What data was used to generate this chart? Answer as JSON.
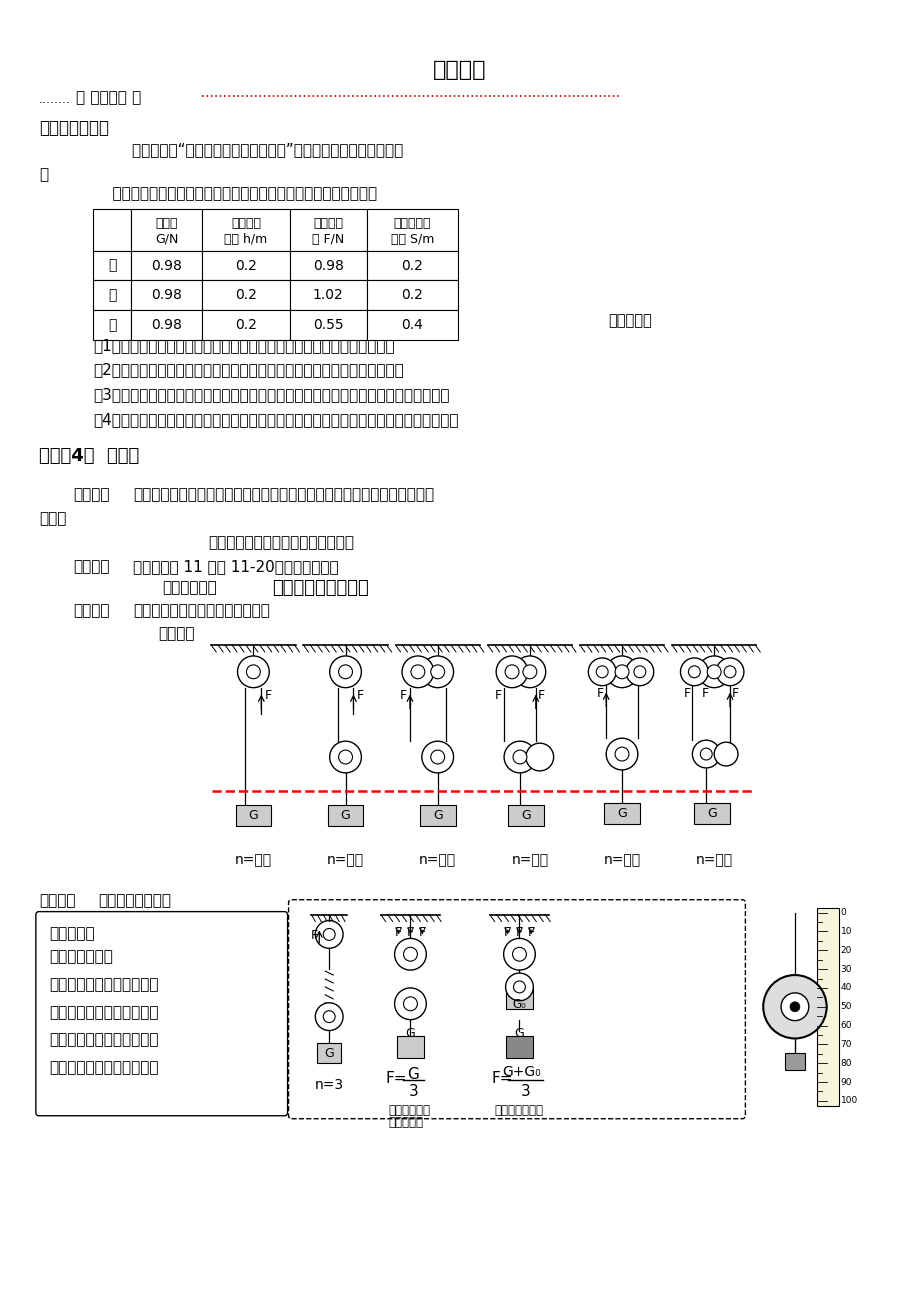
{
  "title": "第二课时",
  "background_color": "#ffffff",
  "page_width": 9.2,
  "page_height": 13.02,
  "section_header": "…………【 学习探索 】………………………………………………………",
  "review_header": "【复习与思考】",
  "review_para1": "        如图是小海“研究定滑轮和动滑轮特点”的实验装置。他按图示提起",
  "review_para2": "    钉码时注意保持测力计匀速移动，分别测得一组数据如下表所示：",
  "table_col0_header": "",
  "table_col1_header_l1": "钉码重",
  "table_col1_header_l2": "G/N",
  "table_col2_header_l1": "钉码升高",
  "table_col2_header_l2": "高度 h/m",
  "table_col3_header_l1": "测力计示",
  "table_col3_header_l2": "数 F/N",
  "table_col4_header_l1": "测力计移动",
  "table_col4_header_l2": "距离 S/m",
  "row0": [
    "甲",
    "0.98",
    "0.2",
    "0.98",
    "0.2"
  ],
  "row1": [
    "乙",
    "0.98",
    "0.2",
    "1.02",
    "0.2"
  ],
  "row2": [
    "丙",
    "0.98",
    "0.2",
    "0.55",
    "0.4"
  ],
  "analysis_label": "请你分析：",
  "q1": "（1）比较测力计示数大小可知：使用动滑轮的好处是＿＿＿＿＿＿＿＿；",
  "q2": "（2）比较测力计拉力的方向可知：使用定滑轮的好处是＿＿＿＿＿＿＿＿；",
  "q3": "（3）把钉码升高相同高度，比较乙和丙测力计移动的距离可知：使用动滑轮＿＿＿＿；",
  "q4": "（4）在提升重物的过程中，如果要同时兼顾定滑轮和动滑轮的特点，则应选择＿＿＿＿。",
  "key4_header": "【要点4】  滑轮组",
  "think_label": "【思考】",
  "think_text1": "使用动滑轮可以＿＿＿＿，使用定滑轮可以＿＿＿＿＿＿＿＿＿。如果将动",
  "think_text2": "滑轮、",
  "think_center": "定滑轮组合起来使用，效果将怎样？",
  "activity_label": "【活动】",
  "activity_text": "对照课本第 11 页图 11-20，组装滑轮组。",
  "assembly_label": "【组装原则】",
  "assembly_text": "奇动偶定，从里向外",
  "discuss_label": "【讨论】",
  "discuss_text": "如何确定承担物重的绳子的股数？",
  "method_label": "《方法》",
  "n_labels": [
    "n=＿＿",
    "n=＿＿",
    "n=＿＿",
    "n=＿＿",
    "n=＿＿",
    "n=＿＿"
  ],
  "explore_label": "【探究】",
  "explore_text": "使用滑轮组的特点",
  "warm_header": "温馨提示：",
  "warm_line1": "使用滑轮组时，",
  "warm_line2": "用几段绳子吱着动滑轮和物",
  "warm_line3": "体，则提起物体的力就是动",
  "warm_line4": "滑轮重和物重的几分之一，",
  "warm_line5": "且每段绳子中的力都相等。",
  "n3_label": "n=3",
  "no_calc1_l1": "不计滑轮重、",
  "no_calc1_l2": "绳重及摩擦",
  "no_calc2": "不计绳重及摩擦"
}
